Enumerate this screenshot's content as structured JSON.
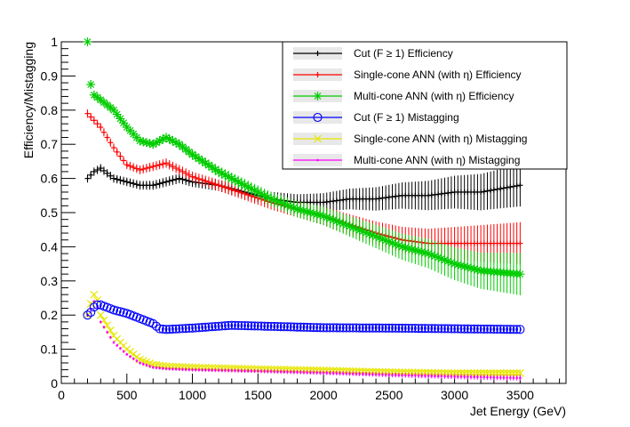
{
  "chart_data": {
    "type": "scatter",
    "title": "",
    "xlabel": "Jet Energy (GeV)",
    "ylabel": "Efficiency/Mistagging",
    "xlim": [
      0,
      3850
    ],
    "ylim": [
      0,
      1
    ],
    "xticks": [
      0,
      500,
      1000,
      1500,
      2000,
      2500,
      3000,
      3500
    ],
    "yticks": [
      0,
      0.1,
      0.2,
      0.3,
      0.4,
      0.5,
      0.6,
      0.7,
      0.8,
      0.9,
      1
    ],
    "legend": "top-right",
    "series": [
      {
        "name": "Cut (F ≥ 1) Efficiency",
        "color": "#000000",
        "marker": "plus",
        "anchors": [
          [
            200,
            0.6
          ],
          [
            250,
            0.62
          ],
          [
            300,
            0.63
          ],
          [
            400,
            0.6
          ],
          [
            500,
            0.59
          ],
          [
            600,
            0.58
          ],
          [
            700,
            0.58
          ],
          [
            800,
            0.59
          ],
          [
            900,
            0.6
          ],
          [
            1000,
            0.59
          ],
          [
            1200,
            0.58
          ],
          [
            1400,
            0.56
          ],
          [
            1600,
            0.54
          ],
          [
            1800,
            0.53
          ],
          [
            2000,
            0.53
          ],
          [
            2200,
            0.54
          ],
          [
            2400,
            0.54
          ],
          [
            2600,
            0.55
          ],
          [
            2800,
            0.55
          ],
          [
            3000,
            0.56
          ],
          [
            3200,
            0.56
          ],
          [
            3500,
            0.58
          ]
        ]
      },
      {
        "name": "Single-cone ANN (with η) Efficiency",
        "color": "#ff0000",
        "marker": "plus",
        "anchors": [
          [
            200,
            0.79
          ],
          [
            250,
            0.77
          ],
          [
            300,
            0.75
          ],
          [
            350,
            0.72
          ],
          [
            400,
            0.69
          ],
          [
            500,
            0.64
          ],
          [
            600,
            0.625
          ],
          [
            700,
            0.635
          ],
          [
            800,
            0.645
          ],
          [
            900,
            0.625
          ],
          [
            1000,
            0.605
          ],
          [
            1200,
            0.58
          ],
          [
            1400,
            0.555
          ],
          [
            1600,
            0.53
          ],
          [
            1800,
            0.51
          ],
          [
            2000,
            0.49
          ],
          [
            2200,
            0.465
          ],
          [
            2400,
            0.44
          ],
          [
            2600,
            0.42
          ],
          [
            2800,
            0.41
          ],
          [
            3000,
            0.41
          ],
          [
            3200,
            0.41
          ],
          [
            3500,
            0.41
          ]
        ]
      },
      {
        "name": "Multi-cone ANN (with η) Efficiency",
        "color": "#00cc00",
        "marker": "star",
        "anchors": [
          [
            200,
            1.0
          ],
          [
            230,
            0.85
          ],
          [
            300,
            0.83
          ],
          [
            400,
            0.8
          ],
          [
            500,
            0.75
          ],
          [
            600,
            0.71
          ],
          [
            700,
            0.7
          ],
          [
            800,
            0.72
          ],
          [
            900,
            0.7
          ],
          [
            1000,
            0.67
          ],
          [
            1200,
            0.62
          ],
          [
            1400,
            0.58
          ],
          [
            1600,
            0.54
          ],
          [
            1800,
            0.51
          ],
          [
            2000,
            0.49
          ],
          [
            2200,
            0.46
          ],
          [
            2400,
            0.43
          ],
          [
            2600,
            0.4
          ],
          [
            2800,
            0.38
          ],
          [
            3000,
            0.35
          ],
          [
            3200,
            0.33
          ],
          [
            3500,
            0.32
          ]
        ]
      },
      {
        "name": "Cut (F ≥ 1) Mistagging",
        "color": "#0000ff",
        "marker": "circle",
        "anchors": [
          [
            200,
            0.2
          ],
          [
            230,
            0.21
          ],
          [
            260,
            0.23
          ],
          [
            300,
            0.23
          ],
          [
            400,
            0.215
          ],
          [
            500,
            0.205
          ],
          [
            600,
            0.19
          ],
          [
            700,
            0.175
          ],
          [
            750,
            0.16
          ],
          [
            800,
            0.158
          ],
          [
            1000,
            0.162
          ],
          [
            1300,
            0.17
          ],
          [
            1600,
            0.167
          ],
          [
            2000,
            0.163
          ],
          [
            2500,
            0.162
          ],
          [
            3000,
            0.16
          ],
          [
            3500,
            0.158
          ]
        ]
      },
      {
        "name": "Single-cone ANN (with η) Mistagging",
        "color": "#e6e600",
        "marker": "cross",
        "anchors": [
          [
            200,
            0.2
          ],
          [
            230,
            0.24
          ],
          [
            260,
            0.27
          ],
          [
            300,
            0.2
          ],
          [
            400,
            0.14
          ],
          [
            500,
            0.1
          ],
          [
            600,
            0.07
          ],
          [
            700,
            0.055
          ],
          [
            800,
            0.05
          ],
          [
            1000,
            0.047
          ],
          [
            1500,
            0.042
          ],
          [
            2000,
            0.038
          ],
          [
            2500,
            0.033
          ],
          [
            3000,
            0.03
          ],
          [
            3500,
            0.03
          ]
        ]
      },
      {
        "name": "Multi-cone ANN (with η) Mistagging",
        "color": "#ff00ff",
        "marker": "dot",
        "anchors": [
          [
            200,
            0.2
          ],
          [
            230,
            0.22
          ],
          [
            260,
            0.25
          ],
          [
            300,
            0.18
          ],
          [
            400,
            0.12
          ],
          [
            500,
            0.085
          ],
          [
            600,
            0.06
          ],
          [
            700,
            0.047
          ],
          [
            800,
            0.043
          ],
          [
            1000,
            0.04
          ],
          [
            1500,
            0.036
          ],
          [
            2000,
            0.031
          ],
          [
            2500,
            0.025
          ],
          [
            3000,
            0.02
          ],
          [
            3500,
            0.016
          ]
        ]
      }
    ]
  }
}
